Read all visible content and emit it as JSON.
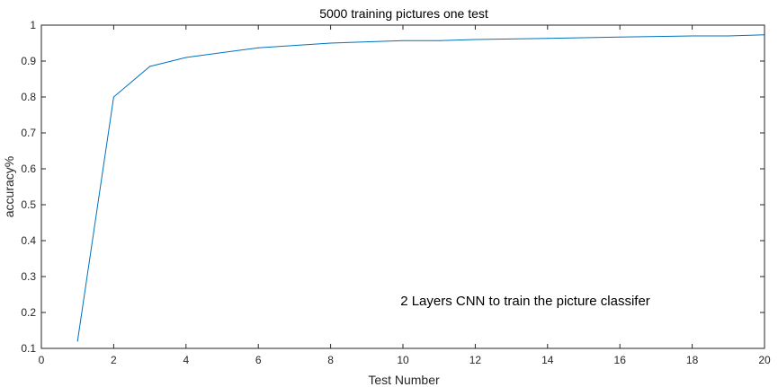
{
  "chart_data": {
    "type": "line",
    "title": "5000 training pictures one test",
    "xlabel": "Test Number",
    "ylabel": "accuracy%",
    "annotation": "2 Layers CNN to train the picture classifer",
    "xlim": [
      0,
      20
    ],
    "ylim": [
      0.1,
      1
    ],
    "xticks": [
      0,
      2,
      4,
      6,
      8,
      10,
      12,
      14,
      16,
      18,
      20
    ],
    "yticks": [
      0.1,
      0.2,
      0.3,
      0.4,
      0.5,
      0.6,
      0.7,
      0.8,
      0.9,
      1
    ],
    "ytick_labels": [
      "0.1",
      "0.2",
      "0.3",
      "0.4",
      "0.5",
      "0.6",
      "0.7",
      "0.8",
      "0.9",
      "1"
    ],
    "grid": false,
    "line_color": "#0072BD",
    "series": [
      {
        "x": [
          1,
          2,
          3,
          4,
          6,
          8,
          10,
          11,
          12,
          14,
          16,
          18,
          19,
          20
        ],
        "values": [
          0.12,
          0.8,
          0.885,
          0.91,
          0.937,
          0.95,
          0.957,
          0.957,
          0.96,
          0.963,
          0.967,
          0.97,
          0.97,
          0.973
        ]
      }
    ]
  }
}
